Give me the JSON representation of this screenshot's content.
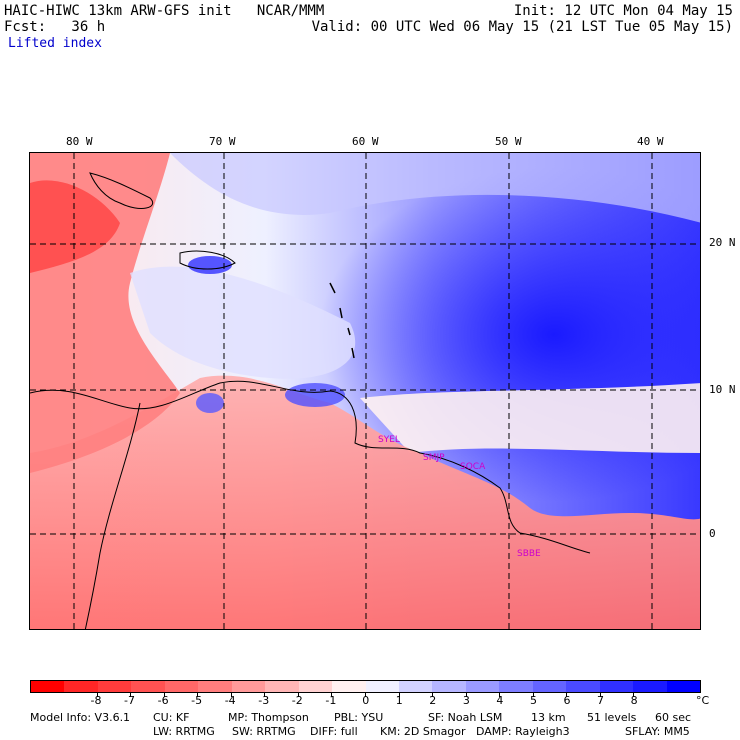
{
  "header": {
    "title": "HAIC-HIWC 13km ARW-GFS init   NCAR/MMM",
    "init": "Init: 12 UTC Mon 04 May 15",
    "fcst": "Fcst:   36 h",
    "valid": "Valid: 00 UTC Wed 06 May 15 (21 LST Tue 05 May 15)",
    "field": "Lifted index"
  },
  "map": {
    "lon_labels": [
      "80 W",
      "70 W",
      "60 W",
      "50 W",
      "40 W"
    ],
    "lat_labels": [
      "20 N",
      "10 N",
      "0"
    ],
    "stations": [
      "SYEL",
      "SMJP",
      "SOCA",
      "SBBE"
    ]
  },
  "colorbar": {
    "unit": "°C",
    "ticks": [
      "-8",
      "-7",
      "-6",
      "-5",
      "-4",
      "-3",
      "-2",
      "-1",
      "0",
      "1",
      "2",
      "3",
      "4",
      "5",
      "6",
      "7",
      "8"
    ],
    "colors": [
      "#ff0000",
      "#ff2626",
      "#ff3c3c",
      "#ff5252",
      "#ff6868",
      "#ff7e7e",
      "#ff9a9a",
      "#ffb6b6",
      "#ffd2d2",
      "#fff0f0",
      "#f0f0ff",
      "#d2d2ff",
      "#b6b6ff",
      "#9a9aff",
      "#7e7eff",
      "#6464ff",
      "#4a4aff",
      "#3030ff",
      "#1a1aff",
      "#0000ff"
    ]
  },
  "footer": {
    "model_info": "Model Info: V3.6.1",
    "cu": "CU: KF",
    "mp": "MP: Thompson",
    "pbl": "PBL: YSU",
    "sf": "SF: Noah LSM",
    "res": "13 km",
    "levels": "51 levels",
    "dt": "60 sec",
    "lw": "LW: RRTMG",
    "sw": "SW: RRTMG",
    "diff": "DIFF: full",
    "km": "KM: 2D Smagor",
    "damp": "DAMP: Rayleigh3",
    "sflay": "SFLAY: MM5"
  }
}
